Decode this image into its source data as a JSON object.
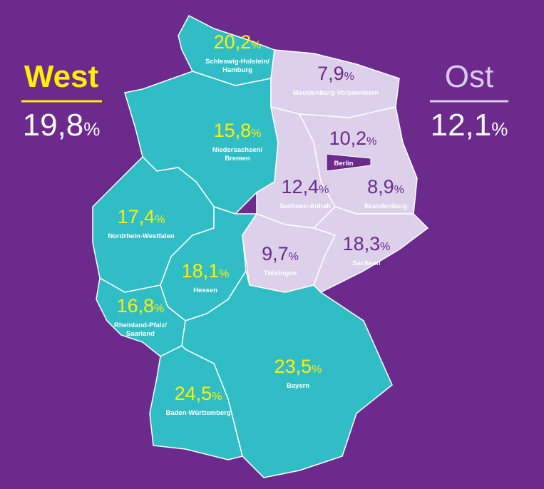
{
  "header": {
    "west": {
      "label": "West",
      "value": "19,8",
      "unit": "%"
    },
    "east": {
      "label": "Ost",
      "value": "12,1",
      "unit": "%"
    }
  },
  "west_regions": [
    {
      "value": "20,2",
      "unit": "%",
      "name": [
        "Schleswig-Holstein/",
        "Hamburg"
      ]
    },
    {
      "value": "15,8",
      "unit": "%",
      "name": [
        "Niedersachsen/",
        "Bremen"
      ]
    },
    {
      "value": "17,4",
      "unit": "%",
      "name": [
        "Nordrhein-Westfalen"
      ]
    },
    {
      "value": "18,1",
      "unit": "%",
      "name": [
        "Hessen"
      ]
    },
    {
      "value": "16,8",
      "unit": "%",
      "name": [
        "Rheinland-Pfalz/",
        "Saarland"
      ]
    },
    {
      "value": "24,5",
      "unit": "%",
      "name": [
        "Baden-Württemberg"
      ]
    },
    {
      "value": "23,5",
      "unit": "%",
      "name": [
        "Bayern"
      ]
    }
  ],
  "east_regions": [
    {
      "value": "7,9",
      "unit": "%",
      "name": [
        "Mecklenburg-Vorpommern"
      ]
    },
    {
      "value": "10,2",
      "unit": "%",
      "name": [
        "Berlin"
      ]
    },
    {
      "value": "12,4",
      "unit": "%",
      "name": [
        "Sachsen-Anhalt"
      ]
    },
    {
      "value": "8,9",
      "unit": "%",
      "name": [
        "Brandenburg"
      ]
    },
    {
      "value": "9,7",
      "unit": "%",
      "name": [
        "Thüringen"
      ]
    },
    {
      "value": "18,3",
      "unit": "%",
      "name": [
        "Sachsen"
      ]
    }
  ]
}
